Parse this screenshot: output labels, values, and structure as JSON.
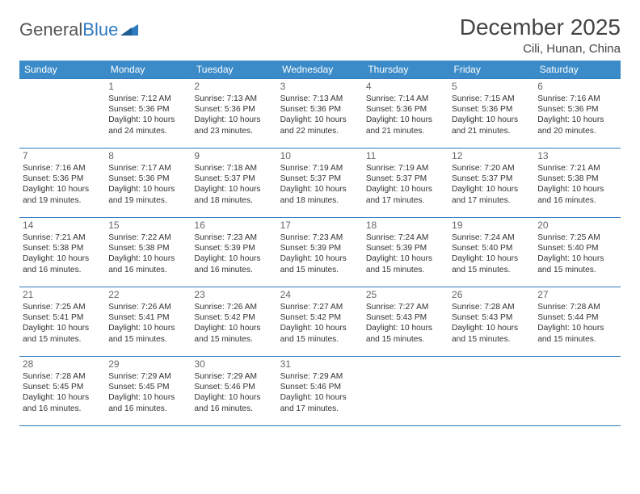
{
  "brand": {
    "part1": "General",
    "part2": "Blue"
  },
  "title": "December 2025",
  "location": "Cili, Hunan, China",
  "colors": {
    "header_bg": "#3b8bc9",
    "border": "#2f7bbf",
    "text": "#333333",
    "title_text": "#444444"
  },
  "calendar": {
    "day_headers": [
      "Sunday",
      "Monday",
      "Tuesday",
      "Wednesday",
      "Thursday",
      "Friday",
      "Saturday"
    ],
    "weeks": [
      [
        {
          "day": "",
          "lines": []
        },
        {
          "day": "1",
          "lines": [
            "Sunrise: 7:12 AM",
            "Sunset: 5:36 PM",
            "Daylight: 10 hours and 24 minutes."
          ]
        },
        {
          "day": "2",
          "lines": [
            "Sunrise: 7:13 AM",
            "Sunset: 5:36 PM",
            "Daylight: 10 hours and 23 minutes."
          ]
        },
        {
          "day": "3",
          "lines": [
            "Sunrise: 7:13 AM",
            "Sunset: 5:36 PM",
            "Daylight: 10 hours and 22 minutes."
          ]
        },
        {
          "day": "4",
          "lines": [
            "Sunrise: 7:14 AM",
            "Sunset: 5:36 PM",
            "Daylight: 10 hours and 21 minutes."
          ]
        },
        {
          "day": "5",
          "lines": [
            "Sunrise: 7:15 AM",
            "Sunset: 5:36 PM",
            "Daylight: 10 hours and 21 minutes."
          ]
        },
        {
          "day": "6",
          "lines": [
            "Sunrise: 7:16 AM",
            "Sunset: 5:36 PM",
            "Daylight: 10 hours and 20 minutes."
          ]
        }
      ],
      [
        {
          "day": "7",
          "lines": [
            "Sunrise: 7:16 AM",
            "Sunset: 5:36 PM",
            "Daylight: 10 hours and 19 minutes."
          ]
        },
        {
          "day": "8",
          "lines": [
            "Sunrise: 7:17 AM",
            "Sunset: 5:36 PM",
            "Daylight: 10 hours and 19 minutes."
          ]
        },
        {
          "day": "9",
          "lines": [
            "Sunrise: 7:18 AM",
            "Sunset: 5:37 PM",
            "Daylight: 10 hours and 18 minutes."
          ]
        },
        {
          "day": "10",
          "lines": [
            "Sunrise: 7:19 AM",
            "Sunset: 5:37 PM",
            "Daylight: 10 hours and 18 minutes."
          ]
        },
        {
          "day": "11",
          "lines": [
            "Sunrise: 7:19 AM",
            "Sunset: 5:37 PM",
            "Daylight: 10 hours and 17 minutes."
          ]
        },
        {
          "day": "12",
          "lines": [
            "Sunrise: 7:20 AM",
            "Sunset: 5:37 PM",
            "Daylight: 10 hours and 17 minutes."
          ]
        },
        {
          "day": "13",
          "lines": [
            "Sunrise: 7:21 AM",
            "Sunset: 5:38 PM",
            "Daylight: 10 hours and 16 minutes."
          ]
        }
      ],
      [
        {
          "day": "14",
          "lines": [
            "Sunrise: 7:21 AM",
            "Sunset: 5:38 PM",
            "Daylight: 10 hours and 16 minutes."
          ]
        },
        {
          "day": "15",
          "lines": [
            "Sunrise: 7:22 AM",
            "Sunset: 5:38 PM",
            "Daylight: 10 hours and 16 minutes."
          ]
        },
        {
          "day": "16",
          "lines": [
            "Sunrise: 7:23 AM",
            "Sunset: 5:39 PM",
            "Daylight: 10 hours and 16 minutes."
          ]
        },
        {
          "day": "17",
          "lines": [
            "Sunrise: 7:23 AM",
            "Sunset: 5:39 PM",
            "Daylight: 10 hours and 15 minutes."
          ]
        },
        {
          "day": "18",
          "lines": [
            "Sunrise: 7:24 AM",
            "Sunset: 5:39 PM",
            "Daylight: 10 hours and 15 minutes."
          ]
        },
        {
          "day": "19",
          "lines": [
            "Sunrise: 7:24 AM",
            "Sunset: 5:40 PM",
            "Daylight: 10 hours and 15 minutes."
          ]
        },
        {
          "day": "20",
          "lines": [
            "Sunrise: 7:25 AM",
            "Sunset: 5:40 PM",
            "Daylight: 10 hours and 15 minutes."
          ]
        }
      ],
      [
        {
          "day": "21",
          "lines": [
            "Sunrise: 7:25 AM",
            "Sunset: 5:41 PM",
            "Daylight: 10 hours and 15 minutes."
          ]
        },
        {
          "day": "22",
          "lines": [
            "Sunrise: 7:26 AM",
            "Sunset: 5:41 PM",
            "Daylight: 10 hours and 15 minutes."
          ]
        },
        {
          "day": "23",
          "lines": [
            "Sunrise: 7:26 AM",
            "Sunset: 5:42 PM",
            "Daylight: 10 hours and 15 minutes."
          ]
        },
        {
          "day": "24",
          "lines": [
            "Sunrise: 7:27 AM",
            "Sunset: 5:42 PM",
            "Daylight: 10 hours and 15 minutes."
          ]
        },
        {
          "day": "25",
          "lines": [
            "Sunrise: 7:27 AM",
            "Sunset: 5:43 PM",
            "Daylight: 10 hours and 15 minutes."
          ]
        },
        {
          "day": "26",
          "lines": [
            "Sunrise: 7:28 AM",
            "Sunset: 5:43 PM",
            "Daylight: 10 hours and 15 minutes."
          ]
        },
        {
          "day": "27",
          "lines": [
            "Sunrise: 7:28 AM",
            "Sunset: 5:44 PM",
            "Daylight: 10 hours and 15 minutes."
          ]
        }
      ],
      [
        {
          "day": "28",
          "lines": [
            "Sunrise: 7:28 AM",
            "Sunset: 5:45 PM",
            "Daylight: 10 hours and 16 minutes."
          ]
        },
        {
          "day": "29",
          "lines": [
            "Sunrise: 7:29 AM",
            "Sunset: 5:45 PM",
            "Daylight: 10 hours and 16 minutes."
          ]
        },
        {
          "day": "30",
          "lines": [
            "Sunrise: 7:29 AM",
            "Sunset: 5:46 PM",
            "Daylight: 10 hours and 16 minutes."
          ]
        },
        {
          "day": "31",
          "lines": [
            "Sunrise: 7:29 AM",
            "Sunset: 5:46 PM",
            "Daylight: 10 hours and 17 minutes."
          ]
        },
        {
          "day": "",
          "lines": []
        },
        {
          "day": "",
          "lines": []
        },
        {
          "day": "",
          "lines": []
        }
      ]
    ]
  }
}
